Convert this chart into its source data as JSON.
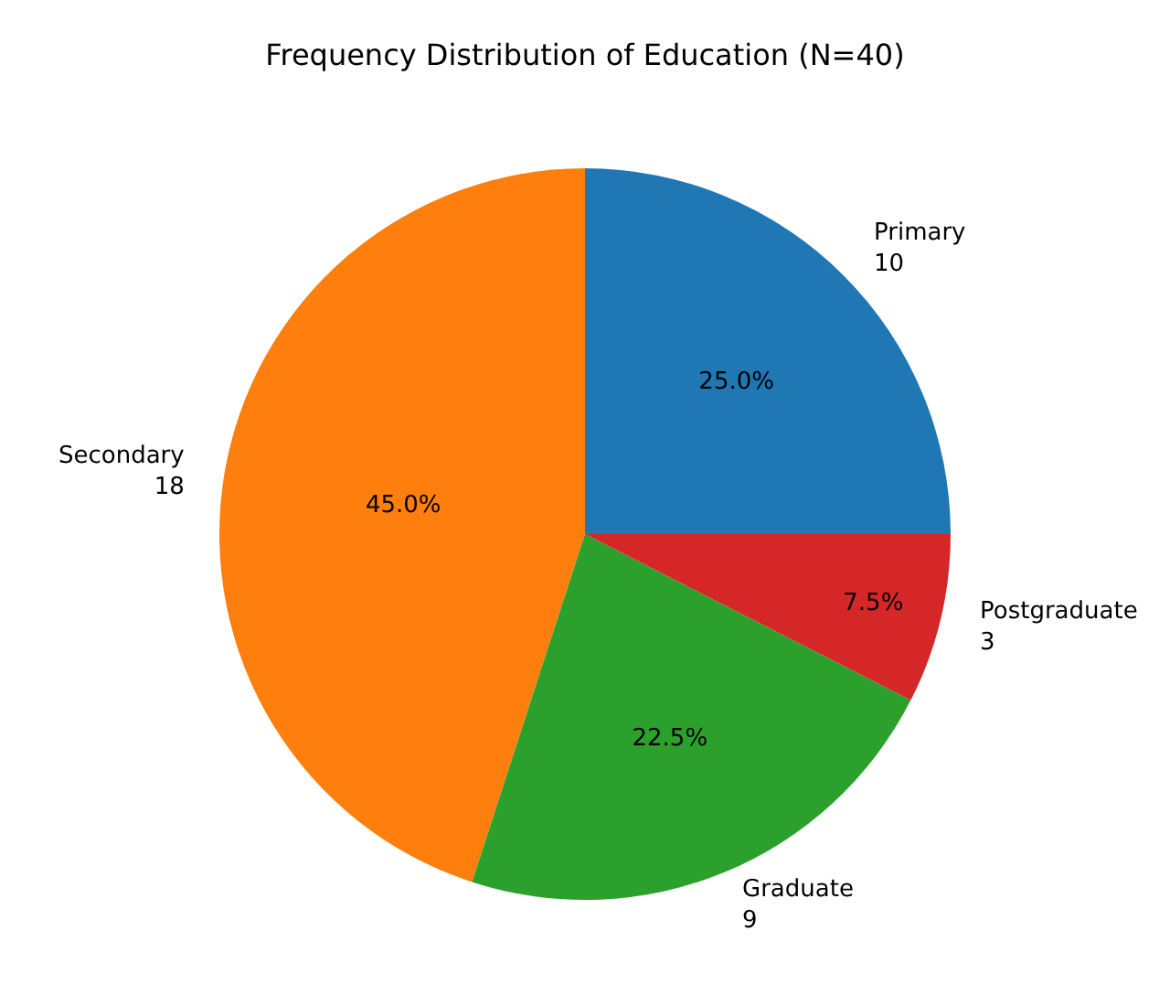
{
  "chart_data": {
    "type": "pie",
    "title": "Frequency Distribution of Education (N=40)",
    "categories": [
      "Primary\n10",
      "Secondary\n18",
      "Graduate\n9",
      "Postgraduate\n3"
    ],
    "values": [
      25,
      45,
      22.5,
      7.5
    ],
    "colors": [
      "#1f77b4",
      "#ff7f0e",
      "#2ca02c",
      "#d62728"
    ],
    "value_labels": [
      "25.0%",
      "45.0%",
      "22.5%",
      "7.5%"
    ],
    "legend": false
  }
}
